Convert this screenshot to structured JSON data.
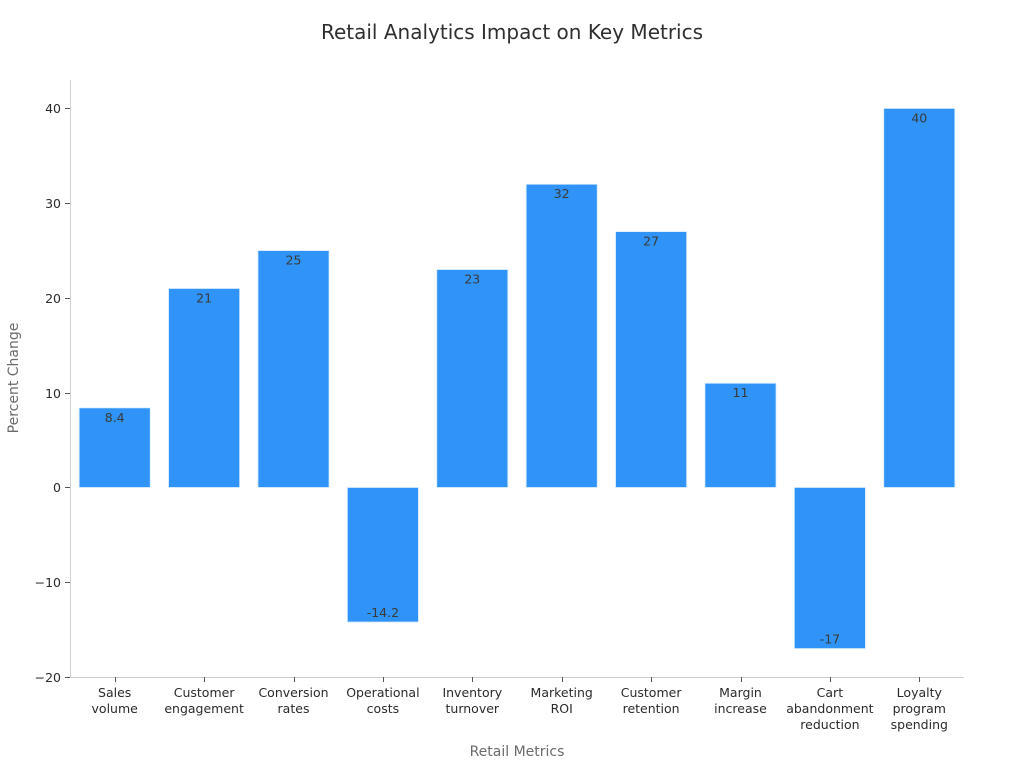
{
  "chart_data": {
    "type": "bar",
    "title": "Retail Analytics Impact on Key Metrics",
    "xlabel": "Retail Metrics",
    "ylabel": "Percent Change",
    "ylim": [
      -20,
      43
    ],
    "yticks": [
      -20,
      -10,
      0,
      10,
      20,
      30,
      40
    ],
    "ytick_labels": [
      "−20",
      "−10",
      "0",
      "10",
      "20",
      "30",
      "40"
    ],
    "categories": [
      [
        "Sales",
        "volume"
      ],
      [
        "Customer",
        "engagement"
      ],
      [
        "Conversion",
        "rates"
      ],
      [
        "Operational",
        "costs"
      ],
      [
        "Inventory",
        "turnover"
      ],
      [
        "Marketing",
        "ROI"
      ],
      [
        "Customer",
        "retention"
      ],
      [
        "Margin",
        "increase"
      ],
      [
        "Cart",
        "abandonment",
        "reduction"
      ],
      [
        "Loyalty",
        "program",
        "spending"
      ]
    ],
    "values": [
      8.4,
      21,
      25,
      -14.2,
      23,
      32,
      27,
      11,
      -17,
      40
    ],
    "value_labels": [
      "8.4",
      "21",
      "25",
      "-14.2",
      "23",
      "32",
      "27",
      "11",
      "-17",
      "40"
    ],
    "bar_color": "#2f93f7",
    "grid": false
  }
}
